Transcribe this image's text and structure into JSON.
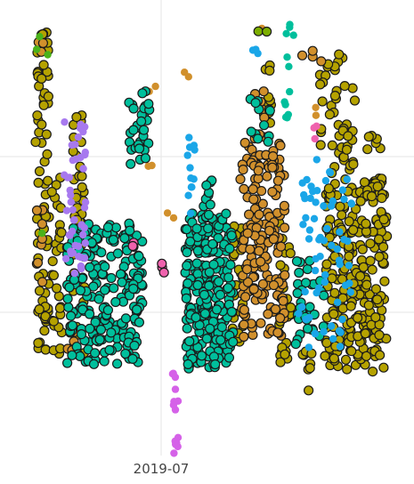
{
  "chart_data": {
    "type": "scatter",
    "title": "",
    "xlabel": "",
    "ylabel": "",
    "x_tick_labels": [
      "2019-07"
    ],
    "grid": true,
    "legend": "none",
    "outlined_point_stroke": "#1a1a1a",
    "background": "#ffffff",
    "grid_color": "#e6e6e6",
    "series": [
      {
        "color": "#b5a200",
        "outlined": true,
        "clusters": [
          {
            "x": [
              40,
              55
            ],
            "y": [
              20,
              395
            ],
            "n": 70
          },
          {
            "x": [
              58,
              70
            ],
            "y": [
              195,
              400
            ],
            "n": 30
          },
          {
            "x": [
              82,
              95
            ],
            "y": [
              100,
              400
            ],
            "n": 40
          },
          {
            "x": [
              258,
              275
            ],
            "y": [
              250,
              405
            ],
            "n": 25
          },
          {
            "x": [
              295,
              305
            ],
            "y": [
              70,
              140
            ],
            "n": 12
          },
          {
            "x": [
              313,
              327
            ],
            "y": [
              250,
              410
            ],
            "n": 30
          },
          {
            "x": [
              340,
              352
            ],
            "y": [
              380,
              455
            ],
            "n": 8
          },
          {
            "x": [
              358,
              385
            ],
            "y": [
              60,
              195
            ],
            "n": 28
          },
          {
            "x": [
              365,
              435
            ],
            "y": [
              200,
              420
            ],
            "n": 260
          },
          {
            "x": [
              385,
              400
            ],
            "y": [
              90,
              200
            ],
            "n": 18
          },
          {
            "x": [
              412,
              430
            ],
            "y": [
              150,
              230
            ],
            "n": 12
          }
        ]
      },
      {
        "color": "#d1902c",
        "outlined": true,
        "clusters": [
          {
            "x": [
              40,
              50
            ],
            "y": [
              45,
              60
            ],
            "n": 3
          },
          {
            "x": [
              40,
              48
            ],
            "y": [
              230,
              330
            ],
            "n": 8
          },
          {
            "x": [
              75,
              85
            ],
            "y": [
              370,
              395
            ],
            "n": 5
          },
          {
            "x": [
              270,
              320
            ],
            "y": [
              160,
              380
            ],
            "n": 170
          },
          {
            "x": [
              285,
              300
            ],
            "y": [
              100,
              160
            ],
            "n": 8
          },
          {
            "x": [
              330,
              365
            ],
            "y": [
              55,
              70
            ],
            "n": 4
          }
        ]
      },
      {
        "color": "#d1902c",
        "outlined": false,
        "clusters": [
          {
            "x": [
              165,
              175
            ],
            "y": [
              95,
              105
            ],
            "n": 2
          },
          {
            "x": [
              165,
              175
            ],
            "y": [
              185,
              195
            ],
            "n": 2
          },
          {
            "x": [
              205,
              213
            ],
            "y": [
              80,
              90
            ],
            "n": 2
          },
          {
            "x": [
              188,
              196
            ],
            "y": [
              238,
              248
            ],
            "n": 2
          },
          {
            "x": [
              345,
              355
            ],
            "y": [
              115,
              130
            ],
            "n": 2
          },
          {
            "x": [
              290,
              300
            ],
            "y": [
              30,
              40
            ],
            "n": 1
          }
        ]
      },
      {
        "color": "#00bf9c",
        "outlined": true,
        "clusters": [
          {
            "x": [
              75,
              160
            ],
            "y": [
              250,
              410
            ],
            "n": 220
          },
          {
            "x": [
              145,
              168
            ],
            "y": [
              100,
              190
            ],
            "n": 30
          },
          {
            "x": [
              208,
              262
            ],
            "y": [
              240,
              415
            ],
            "n": 230
          },
          {
            "x": [
              280,
              305
            ],
            "y": [
              110,
              160
            ],
            "n": 12
          },
          {
            "x": [
              330,
              365
            ],
            "y": [
              290,
              390
            ],
            "n": 35
          },
          {
            "x": [
              225,
              240
            ],
            "y": [
              200,
              240
            ],
            "n": 8
          }
        ]
      },
      {
        "color": "#00bf9c",
        "outlined": false,
        "clusters": [
          {
            "x": [
              320,
              330
            ],
            "y": [
              22,
              45
            ],
            "n": 4
          },
          {
            "x": [
              318,
              330
            ],
            "y": [
              60,
              140
            ],
            "n": 8
          }
        ]
      },
      {
        "color": "#1aa6e8",
        "outlined": false,
        "clusters": [
          {
            "x": [
              210,
              220
            ],
            "y": [
              150,
              250
            ],
            "n": 12
          },
          {
            "x": [
              282,
              292
            ],
            "y": [
              55,
              75
            ],
            "n": 3
          },
          {
            "x": [
              335,
              395
            ],
            "y": [
              170,
              395
            ],
            "n": 60
          },
          {
            "x": [
              340,
              355
            ],
            "y": [
              210,
              225
            ],
            "n": 3
          }
        ]
      },
      {
        "color": "#a779ef",
        "outlined": false,
        "clusters": [
          {
            "x": [
              72,
              98
            ],
            "y": [
              128,
              310
            ],
            "n": 45
          }
        ]
      },
      {
        "color": "#d562e8",
        "outlined": false,
        "clusters": [
          {
            "x": [
              193,
              202
            ],
            "y": [
              412,
              512
            ],
            "n": 14
          }
        ]
      },
      {
        "color": "#ef62ad",
        "outlined": true,
        "clusters": [
          {
            "x": [
              148,
              155
            ],
            "y": [
              272,
              282
            ],
            "n": 2
          },
          {
            "x": [
              180,
              186
            ],
            "y": [
              295,
              322
            ],
            "n": 3
          }
        ]
      },
      {
        "color": "#ef62ad",
        "outlined": false,
        "clusters": [
          {
            "x": [
              352,
              358
            ],
            "y": [
              140,
              160
            ],
            "n": 3
          }
        ]
      },
      {
        "color": "#4ab21a",
        "outlined": false,
        "clusters": [
          {
            "x": [
              45,
              55
            ],
            "y": [
              262,
              268
            ],
            "n": 1
          },
          {
            "x": [
              40,
              58
            ],
            "y": [
              20,
              75
            ],
            "n": 3
          }
        ]
      },
      {
        "color": "#7cae00",
        "outlined": true,
        "clusters": [
          {
            "x": [
              286,
              300
            ],
            "y": [
              30,
              40
            ],
            "n": 2
          }
        ]
      }
    ]
  }
}
